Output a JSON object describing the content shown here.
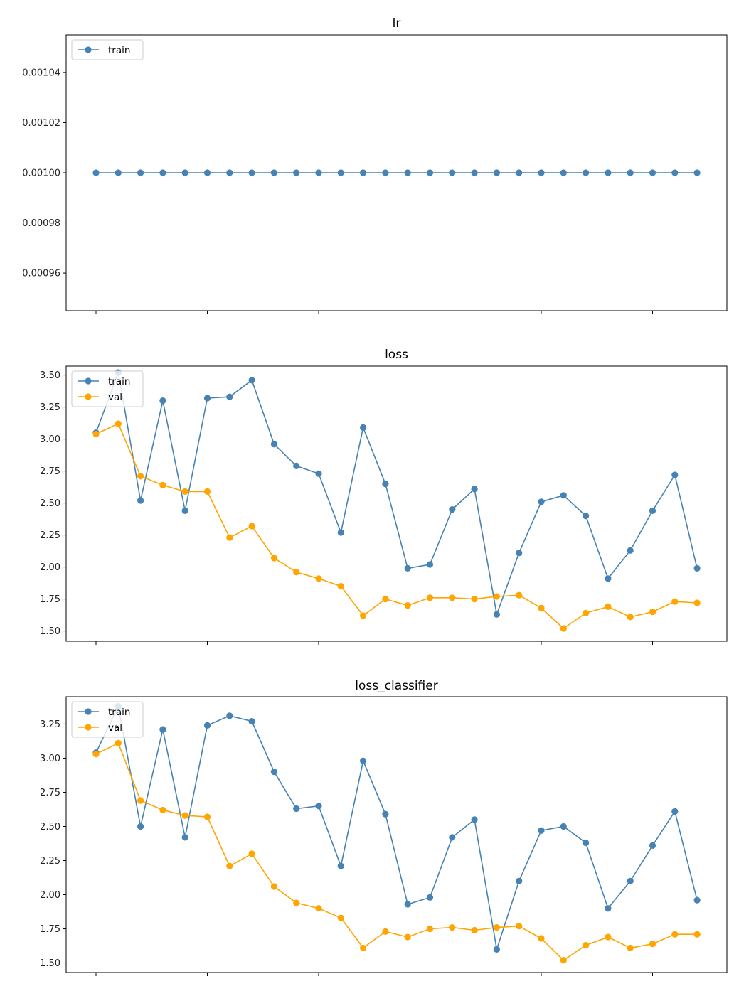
{
  "chart_data": [
    {
      "type": "line",
      "title": "lr",
      "xlabel": "",
      "ylabel": "",
      "ylim": [
        0.000945,
        0.001055
      ],
      "yticks": [
        0.00096,
        0.00098,
        0.001,
        0.00102,
        0.00104
      ],
      "ytick_labels": [
        "0.00096",
        "0.00098",
        "0.00100",
        "0.00102",
        "0.00104"
      ],
      "xticks": [
        0,
        5,
        10,
        15,
        20,
        25
      ],
      "legend": "upper-left",
      "grid": false,
      "x": [
        0,
        1,
        2,
        3,
        4,
        5,
        6,
        7,
        8,
        9,
        10,
        11,
        12,
        13,
        14,
        15,
        16,
        17,
        18,
        19,
        20,
        21,
        22,
        23,
        24,
        25,
        26,
        27
      ],
      "series": [
        {
          "name": "train",
          "color": "#4682B4",
          "values": [
            0.001,
            0.001,
            0.001,
            0.001,
            0.001,
            0.001,
            0.001,
            0.001,
            0.001,
            0.001,
            0.001,
            0.001,
            0.001,
            0.001,
            0.001,
            0.001,
            0.001,
            0.001,
            0.001,
            0.001,
            0.001,
            0.001,
            0.001,
            0.001,
            0.001,
            0.001,
            0.001,
            0.001
          ]
        }
      ]
    },
    {
      "type": "line",
      "title": "loss",
      "xlabel": "",
      "ylabel": "",
      "ylim": [
        1.42,
        3.57
      ],
      "yticks": [
        1.5,
        1.75,
        2.0,
        2.25,
        2.5,
        2.75,
        3.0,
        3.25,
        3.5
      ],
      "ytick_labels": [
        "1.50",
        "1.75",
        "2.00",
        "2.25",
        "2.50",
        "2.75",
        "3.00",
        "3.25",
        "3.50"
      ],
      "xticks": [
        0,
        5,
        10,
        15,
        20,
        25
      ],
      "legend": "upper-left",
      "grid": false,
      "x": [
        0,
        1,
        2,
        3,
        4,
        5,
        6,
        7,
        8,
        9,
        10,
        11,
        12,
        13,
        14,
        15,
        16,
        17,
        18,
        19,
        20,
        21,
        22,
        23,
        24,
        25,
        26,
        27
      ],
      "series": [
        {
          "name": "train",
          "color": "#4682B4",
          "values": [
            3.05,
            3.52,
            2.52,
            3.3,
            2.44,
            3.32,
            3.33,
            3.46,
            2.96,
            2.79,
            2.73,
            2.27,
            3.09,
            2.65,
            1.99,
            2.02,
            2.45,
            2.61,
            1.63,
            2.11,
            2.51,
            2.56,
            2.4,
            1.91,
            2.13,
            2.44,
            2.72,
            1.99
          ]
        },
        {
          "name": "val",
          "color": "#FFA500",
          "values": [
            3.04,
            3.12,
            2.71,
            2.64,
            2.59,
            2.59,
            2.23,
            2.32,
            2.07,
            1.96,
            1.91,
            1.85,
            1.62,
            1.75,
            1.7,
            1.76,
            1.76,
            1.75,
            1.77,
            1.78,
            1.68,
            1.52,
            1.64,
            1.69,
            1.61,
            1.65,
            1.73,
            1.72
          ]
        }
      ]
    },
    {
      "type": "line",
      "title": "loss_classifier",
      "xlabel": "",
      "ylabel": "",
      "ylim": [
        1.43,
        3.45
      ],
      "yticks": [
        1.5,
        1.75,
        2.0,
        2.25,
        2.5,
        2.75,
        3.0,
        3.25
      ],
      "ytick_labels": [
        "1.50",
        "1.75",
        "2.00",
        "2.25",
        "2.50",
        "2.75",
        "3.00",
        "3.25"
      ],
      "xticks": [
        0,
        5,
        10,
        15,
        20,
        25
      ],
      "legend": "upper-left",
      "grid": false,
      "x": [
        0,
        1,
        2,
        3,
        4,
        5,
        6,
        7,
        8,
        9,
        10,
        11,
        12,
        13,
        14,
        15,
        16,
        17,
        18,
        19,
        20,
        21,
        22,
        23,
        24,
        25,
        26,
        27
      ],
      "series": [
        {
          "name": "train",
          "color": "#4682B4",
          "values": [
            3.04,
            3.38,
            2.5,
            3.21,
            2.42,
            3.24,
            3.31,
            3.27,
            2.9,
            2.63,
            2.65,
            2.21,
            2.98,
            2.59,
            1.93,
            1.98,
            2.42,
            2.55,
            1.6,
            2.1,
            2.47,
            2.5,
            2.38,
            1.9,
            2.1,
            2.36,
            2.61,
            1.96
          ]
        },
        {
          "name": "val",
          "color": "#FFA500",
          "values": [
            3.03,
            3.11,
            2.69,
            2.62,
            2.58,
            2.57,
            2.21,
            2.3,
            2.06,
            1.94,
            1.9,
            1.83,
            1.61,
            1.73,
            1.69,
            1.75,
            1.76,
            1.74,
            1.76,
            1.77,
            1.68,
            1.52,
            1.63,
            1.69,
            1.61,
            1.64,
            1.71,
            1.71
          ]
        }
      ]
    }
  ]
}
